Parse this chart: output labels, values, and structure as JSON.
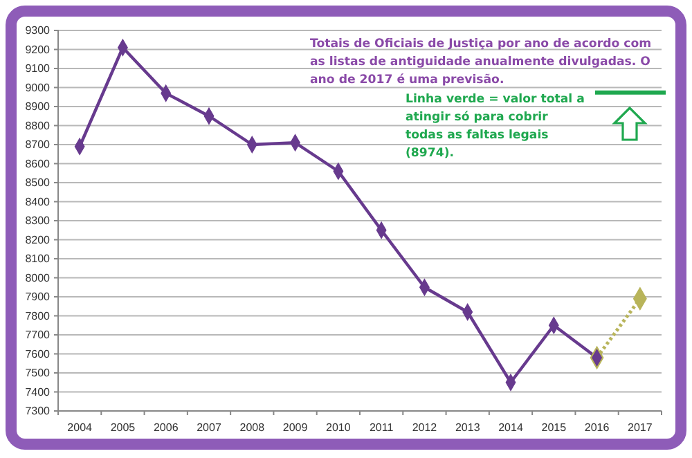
{
  "chart_data": {
    "type": "line",
    "categories": [
      "2004",
      "2005",
      "2006",
      "2007",
      "2008",
      "2009",
      "2010",
      "2011",
      "2012",
      "2013",
      "2014",
      "2015",
      "2016",
      "2017"
    ],
    "series": [
      {
        "color": "#673a8e",
        "line_style": "solid",
        "values": [
          8690,
          9210,
          8970,
          8850,
          8700,
          8710,
          8560,
          8250,
          7950,
          7820,
          7450,
          7750,
          7580,
          null
        ]
      },
      {
        "color": "#b8b45a",
        "line_style": "dotted",
        "values": [
          null,
          null,
          null,
          null,
          null,
          null,
          null,
          null,
          null,
          null,
          null,
          null,
          7580,
          7890
        ]
      }
    ],
    "marker": "diamond",
    "ylim": [
      7300,
      9300
    ],
    "yticks": [
      7300,
      7400,
      7500,
      7600,
      7700,
      7800,
      7900,
      8000,
      8100,
      8200,
      8300,
      8400,
      8500,
      8600,
      8700,
      8800,
      8900,
      9000,
      9100,
      9200,
      9300
    ],
    "grid": "y",
    "ref_lines": [
      {
        "axis": "y",
        "value": 8974,
        "color": "#1fa84f"
      }
    ],
    "annotations": [
      "Totais de Oficiais de Justiça por ano de acordo com as listas de antiguidade anualmente divulgadas. O ano de 2017 é uma previsão.",
      "Linha verde = valor total a atingir só para cobrir todas as faltas legais (8974)."
    ]
  }
}
